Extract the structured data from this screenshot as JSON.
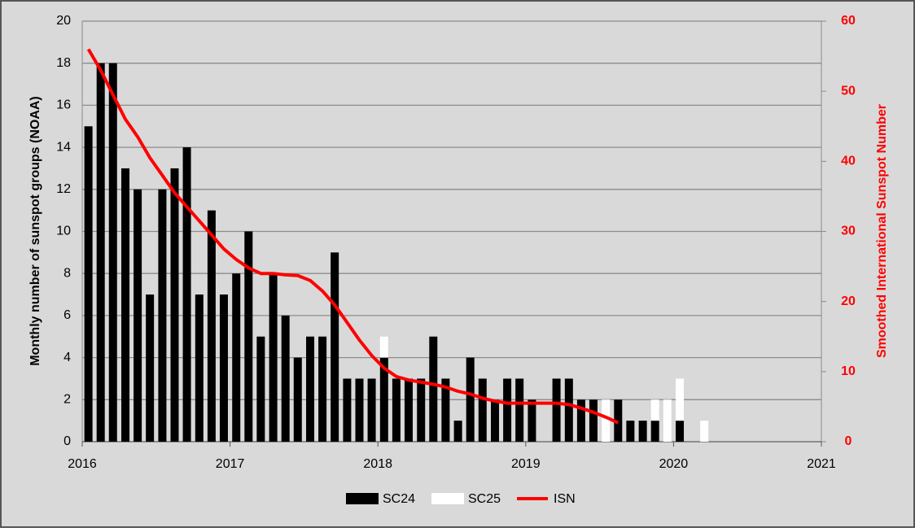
{
  "chart_data": {
    "type": "bar",
    "x": [
      2016.042,
      2016.125,
      2016.208,
      2016.292,
      2016.375,
      2016.458,
      2016.542,
      2016.625,
      2016.708,
      2016.792,
      2016.875,
      2016.958,
      2017.042,
      2017.125,
      2017.208,
      2017.292,
      2017.375,
      2017.458,
      2017.542,
      2017.625,
      2017.708,
      2017.792,
      2017.875,
      2017.958,
      2018.042,
      2018.125,
      2018.208,
      2018.292,
      2018.375,
      2018.458,
      2018.542,
      2018.625,
      2018.708,
      2018.792,
      2018.875,
      2018.958,
      2019.042,
      2019.125,
      2019.208,
      2019.292,
      2019.375,
      2019.458,
      2019.542,
      2019.625,
      2019.708,
      2019.792,
      2019.875,
      2019.958,
      2020.042,
      2020.125,
      2020.208
    ],
    "series": [
      {
        "name": "SC24",
        "color": "#000000",
        "stacked": true,
        "values": [
          15,
          18,
          18,
          13,
          12,
          7,
          12,
          13,
          14,
          7,
          11,
          7,
          8,
          10,
          5,
          8,
          6,
          4,
          5,
          5,
          9,
          3,
          3,
          3,
          4,
          3,
          3,
          3,
          5,
          3,
          1,
          4,
          3,
          2,
          3,
          3,
          2,
          0,
          3,
          3,
          2,
          2,
          0,
          2,
          1,
          1,
          1,
          0,
          1,
          0,
          0
        ]
      },
      {
        "name": "SC25",
        "color": "#ffffff",
        "stacked": true,
        "values": [
          0,
          0,
          0,
          0,
          0,
          0,
          0,
          0,
          0,
          0,
          0,
          0,
          0,
          0,
          0,
          0,
          0,
          0,
          0,
          0,
          0,
          0,
          0,
          0,
          1,
          0,
          0,
          0,
          0,
          0,
          0,
          0,
          0,
          0,
          0,
          0,
          0,
          0,
          0,
          0,
          0,
          0,
          2,
          0,
          0,
          0,
          1,
          2,
          2,
          0,
          1
        ]
      },
      {
        "name": "ISN",
        "color": "#ff0000",
        "type": "line",
        "axis": "y2",
        "values": [
          56,
          53,
          49.5,
          46,
          43.5,
          40.5,
          38,
          35.5,
          33.5,
          31.5,
          29.5,
          27.5,
          26,
          24.8,
          24,
          24,
          23.8,
          23.7,
          23,
          21.5,
          19.5,
          17,
          14.5,
          12.3,
          10.5,
          9.3,
          8.8,
          8.5,
          8.2,
          7.8,
          7.2,
          6.8,
          6.2,
          5.8,
          5.5,
          5.5,
          5.5,
          5.5,
          5.5,
          5.3,
          4.8,
          4.2,
          3.5,
          2.7,
          null,
          null,
          null,
          null,
          null,
          null,
          null
        ]
      }
    ],
    "ylabel": "Monthly number of sunspot groups (NOAA)",
    "y2label": "Smoothed International Sunspot Number",
    "xlim": [
      2016,
      2021
    ],
    "xticks": [
      2016,
      2017,
      2018,
      2019,
      2020,
      2021
    ],
    "ylim": [
      0,
      20
    ],
    "yticks": [
      0,
      2,
      4,
      6,
      8,
      10,
      12,
      14,
      16,
      18,
      20
    ],
    "y2lim": [
      0,
      60
    ],
    "y2ticks": [
      0,
      10,
      20,
      30,
      40,
      50,
      60
    ],
    "grid": true,
    "legend": "bottom"
  }
}
